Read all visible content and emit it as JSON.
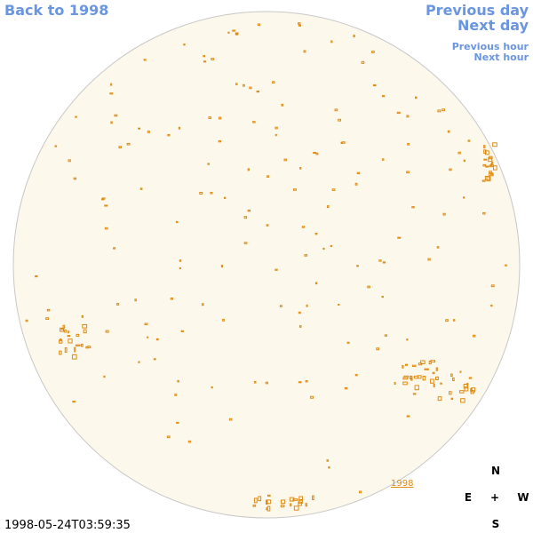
{
  "nav": {
    "back": "Back to 1998",
    "previous_day": "Previous day",
    "next_day": "Next day",
    "previous_hour": "Previous hour",
    "next_hour": "Next hour"
  },
  "timestamp": "1998-05-24T03:59:35",
  "year_link": "1998",
  "compass": {
    "north": "N",
    "east": "E",
    "center": "+",
    "west": "W",
    "south": "S"
  }
}
